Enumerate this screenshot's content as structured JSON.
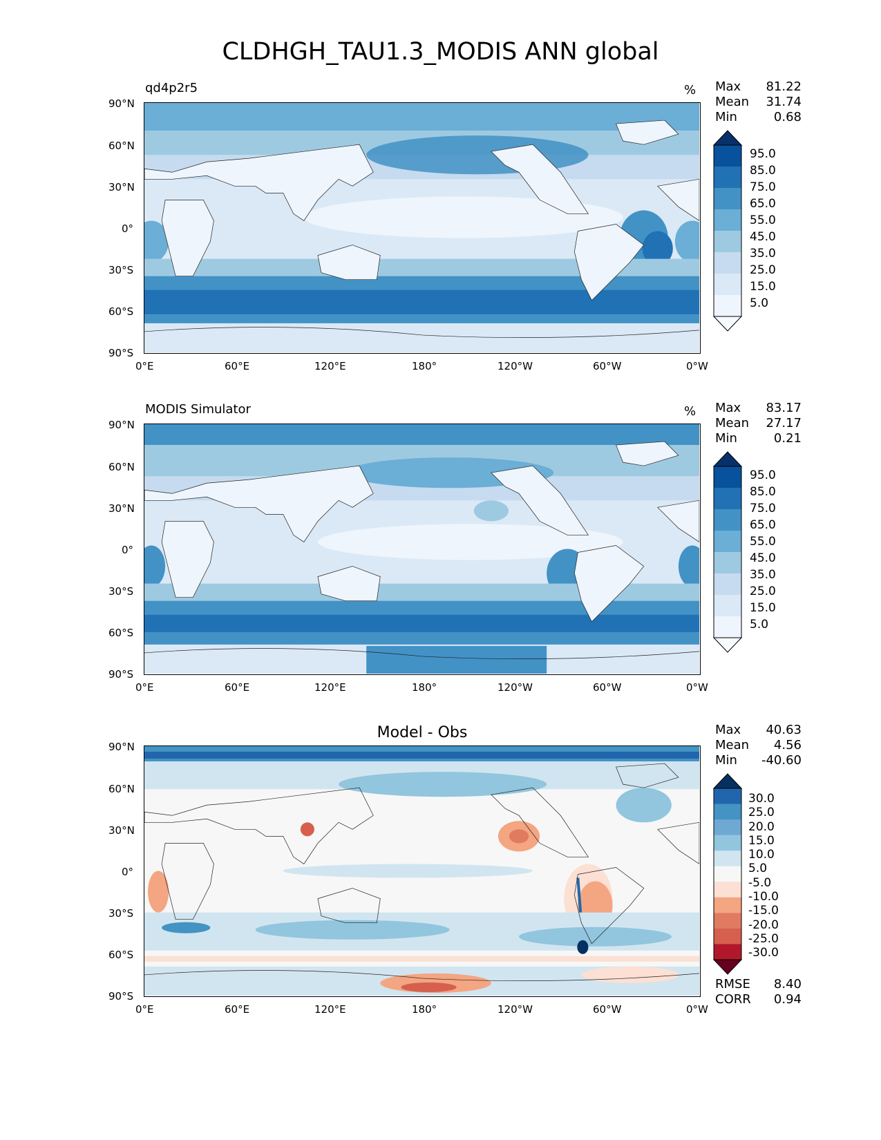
{
  "figure": {
    "title": "CLDHGH_TAU1.3_MODIS ANN global"
  },
  "axes": {
    "y_ticks": [
      "90°N",
      "60°N",
      "30°N",
      "0°",
      "30°S",
      "60°S",
      "90°S"
    ],
    "x_ticks": [
      "0°E",
      "60°E",
      "120°E",
      "180°",
      "120°W",
      "60°W",
      "0°W"
    ]
  },
  "panels": [
    {
      "title": "qd4p2r5",
      "unit": "%",
      "stats": [
        {
          "label": "Max",
          "value": "81.22"
        },
        {
          "label": "Mean",
          "value": "31.74"
        },
        {
          "label": "Min",
          "value": "0.68"
        }
      ],
      "colorbar": {
        "labels": [
          "95.0",
          "85.0",
          "75.0",
          "65.0",
          "55.0",
          "45.0",
          "35.0",
          "25.0",
          "15.0",
          "5.0"
        ],
        "colors": [
          "#08306b",
          "#08519c",
          "#2171b5",
          "#4292c6",
          "#6baed6",
          "#9ecae1",
          "#c6dbef",
          "#dbe9f6",
          "#eef5fc",
          "#f7fbff"
        ]
      }
    },
    {
      "title": "MODIS Simulator",
      "unit": "%",
      "stats": [
        {
          "label": "Max",
          "value": "83.17"
        },
        {
          "label": "Mean",
          "value": "27.17"
        },
        {
          "label": "Min",
          "value": "0.21"
        }
      ],
      "colorbar": {
        "labels": [
          "95.0",
          "85.0",
          "75.0",
          "65.0",
          "55.0",
          "45.0",
          "35.0",
          "25.0",
          "15.0",
          "5.0"
        ],
        "colors": [
          "#08306b",
          "#08519c",
          "#2171b5",
          "#4292c6",
          "#6baed6",
          "#9ecae1",
          "#c6dbef",
          "#dbe9f6",
          "#eef5fc",
          "#f7fbff"
        ]
      }
    },
    {
      "title": "Model - Obs",
      "stats": [
        {
          "label": "Max",
          "value": "40.63"
        },
        {
          "label": "Mean",
          "value": "4.56"
        },
        {
          "label": "Min",
          "value": "-40.60"
        }
      ],
      "colorbar": {
        "labels": [
          "30.0",
          "25.0",
          "20.0",
          "15.0",
          "10.0",
          "5.0",
          "-5.0",
          "-10.0",
          "-15.0",
          "-20.0",
          "-25.0",
          "-30.0"
        ],
        "colors": [
          "#053061",
          "#2166ac",
          "#4393c3",
          "#6fa9d3",
          "#92c5de",
          "#d1e5f0",
          "#f7f7f7",
          "#fbe0d3",
          "#f4a582",
          "#e07b62",
          "#d6604d",
          "#b2182b",
          "#67001f"
        ]
      },
      "metrics": [
        {
          "label": "RMSE",
          "value": "8.40"
        },
        {
          "label": "CORR",
          "value": "0.94"
        }
      ]
    }
  ]
}
